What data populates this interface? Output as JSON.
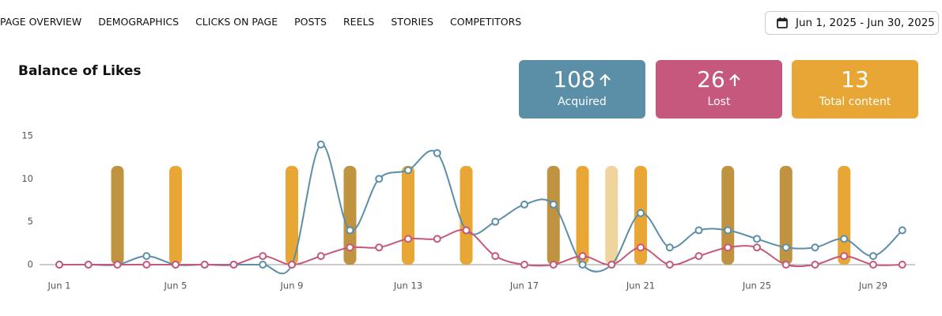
{
  "nav": {
    "tabs": [
      "PAGE OVERVIEW",
      "DEMOGRAPHICS",
      "CLICKS ON PAGE",
      "POSTS",
      "REELS",
      "STORIES",
      "COMPETITORS"
    ]
  },
  "date_range": "Jun 1, 2025 - Jun 30, 2025",
  "cards": [
    {
      "value": 108,
      "label": "Acquired",
      "color": "#5b8fa8",
      "arrow": true
    },
    {
      "value": 26,
      "label": "Lost",
      "color": "#c5587c",
      "arrow": true
    },
    {
      "value": 13,
      "label": "Total content",
      "color": "#e8a735",
      "arrow": false
    }
  ],
  "chart_data": {
    "type": "line",
    "title": "Balance of Likes",
    "categories": [
      "Jun 1",
      null,
      null,
      null,
      "Jun 5",
      null,
      null,
      null,
      "Jun 9",
      null,
      null,
      null,
      "Jun 13",
      null,
      null,
      null,
      "Jun 17",
      null,
      null,
      null,
      "Jun 21",
      null,
      null,
      null,
      "Jun 25",
      null,
      null,
      null,
      "Jun 29",
      null
    ],
    "series": [
      {
        "name": "Acquired",
        "color": "#5b8fa8",
        "values": [
          0,
          0,
          0,
          1,
          0,
          0,
          0,
          0,
          0,
          14,
          4,
          10,
          11,
          13,
          4,
          5,
          7,
          7,
          0,
          0,
          6,
          2,
          4,
          4,
          3,
          2,
          2,
          3,
          1,
          4
        ]
      },
      {
        "name": "Lost",
        "color": "#c5587c",
        "values": [
          0,
          0,
          0,
          0,
          0,
          0,
          0,
          1,
          0,
          1,
          2,
          2,
          3,
          3,
          4,
          1,
          0,
          0,
          1,
          0,
          2,
          0,
          1,
          2,
          2,
          0,
          0,
          1,
          0,
          0
        ]
      }
    ],
    "content_height": 11.5,
    "content_colors": [
      null,
      null,
      "#c09341",
      null,
      "#e8a735",
      null,
      null,
      null,
      "#e8a735",
      null,
      "#c09341",
      null,
      "#e8a735",
      null,
      "#e8a735",
      null,
      null,
      "#c09341",
      "#e8a735",
      "#f0d49e",
      "#e8a735",
      null,
      null,
      "#c09341",
      null,
      "#c09341",
      null,
      "#e8a735",
      null,
      null
    ],
    "ylim": [
      0,
      15
    ],
    "yticks": [
      0,
      5,
      10,
      15
    ],
    "grid": false
  }
}
